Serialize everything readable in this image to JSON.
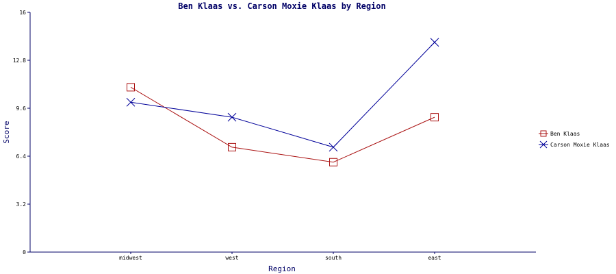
{
  "chart_data": {
    "type": "line",
    "title": "Ben Klaas vs. Carson Moxie Klaas by Region",
    "xlabel": "Region",
    "ylabel": "Score",
    "categories": [
      "midwest",
      "west",
      "south",
      "east"
    ],
    "ylim": [
      0,
      16
    ],
    "yticks": [
      "0",
      "3.2",
      "6.4",
      "9.6",
      "12.8",
      "16"
    ],
    "grid": false,
    "legend_position": "right",
    "series": [
      {
        "name": "Ben Klaas",
        "values": [
          11.0,
          7.0,
          6.0,
          9.0
        ],
        "color": "#aa1111",
        "marker": "square"
      },
      {
        "name": "Carson Moxie Klaas",
        "values": [
          10.0,
          9.0,
          7.0,
          14.0
        ],
        "color": "#000099",
        "marker": "x"
      }
    ]
  }
}
